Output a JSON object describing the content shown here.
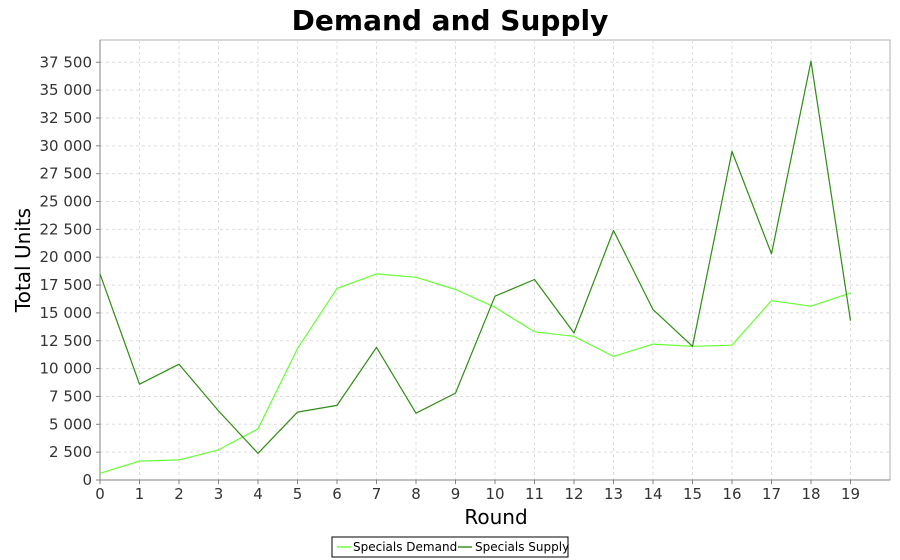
{
  "chart_data": {
    "type": "line",
    "title": "Demand and Supply",
    "xlabel": "Round",
    "ylabel": "Total Units",
    "x": [
      0,
      1,
      2,
      3,
      4,
      5,
      6,
      7,
      8,
      9,
      10,
      11,
      12,
      13,
      14,
      15,
      16,
      17,
      18,
      19
    ],
    "xlim": [
      0,
      20
    ],
    "ylim": [
      0,
      39500
    ],
    "y_ticks": [
      0,
      2500,
      5000,
      7500,
      10000,
      12500,
      15000,
      17500,
      20000,
      22500,
      25000,
      27500,
      30000,
      32500,
      35000,
      37500
    ],
    "y_tick_labels": [
      "0",
      "2 500",
      "5 000",
      "7 500",
      "10 000",
      "12 500",
      "15 000",
      "17 500",
      "20 000",
      "22 500",
      "25 000",
      "27 500",
      "30 000",
      "32 500",
      "35 000",
      "37 500"
    ],
    "x_tick_labels": [
      "0",
      "1",
      "2",
      "3",
      "4",
      "5",
      "6",
      "7",
      "8",
      "9",
      "10",
      "11",
      "12",
      "13",
      "14",
      "15",
      "16",
      "17",
      "18",
      "19"
    ],
    "grid": true,
    "legend_position": "bottom",
    "series": [
      {
        "name": "Specials Demand",
        "color": "#66ff33",
        "values": [
          600,
          1700,
          1800,
          2700,
          4600,
          11800,
          17200,
          18500,
          18200,
          17100,
          15500,
          13300,
          12900,
          11100,
          12200,
          12000,
          12100,
          16100,
          15600,
          16800
        ]
      },
      {
        "name": "Specials Supply",
        "color": "#2f8c13",
        "values": [
          18500,
          8600,
          10400,
          6200,
          2400,
          6100,
          6700,
          11900,
          6000,
          7800,
          16500,
          18000,
          13200,
          22400,
          15300,
          12000,
          29500,
          20300,
          37600,
          14300
        ]
      }
    ]
  }
}
